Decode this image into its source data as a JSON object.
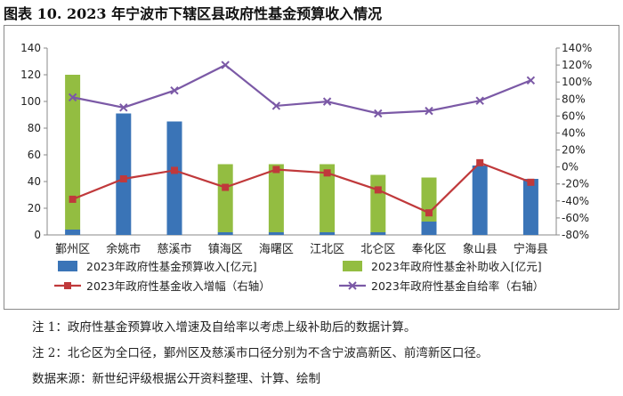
{
  "title": "图表 10. 2023 年宁波市下辖区县政府性基金预算收入情况",
  "chart_data": {
    "type": "bar",
    "categories": [
      "鄞州区",
      "余姚市",
      "慈溪市",
      "镇海区",
      "海曙区",
      "江北区",
      "北仑区",
      "奉化区",
      "象山县",
      "宁海县"
    ],
    "series": [
      {
        "name": "2023年政府性基金预算收入[亿元]",
        "type": "bar",
        "axis": "left",
        "color": "#3a74b7",
        "values": [
          4,
          91,
          85,
          2,
          2,
          2,
          2,
          10,
          52,
          42
        ]
      },
      {
        "name": "2023年政府性基金补助收入[亿元]",
        "type": "bar",
        "axis": "left",
        "color": "#93bd41",
        "values": [
          116,
          0,
          0,
          51,
          51,
          51,
          43,
          33,
          0,
          0
        ]
      },
      {
        "name": "2023年政府性基金收入增幅（右轴）",
        "type": "line",
        "axis": "right",
        "color": "#c0393b",
        "marker": "square",
        "values": [
          -38,
          -14,
          -4,
          -24,
          -3,
          -7,
          -27,
          -54,
          5,
          -18
        ]
      },
      {
        "name": "2023年政府性基金自给率（右轴）",
        "type": "line",
        "axis": "right",
        "color": "#7b59a6",
        "marker": "x",
        "values": [
          82,
          70,
          90,
          120,
          72,
          77,
          63,
          66,
          78,
          102
        ]
      }
    ],
    "yaxis_left": {
      "min": 0,
      "max": 140,
      "step": 20,
      "ticks": [
        "0",
        "20",
        "40",
        "60",
        "80",
        "100",
        "120",
        "140"
      ]
    },
    "yaxis_right": {
      "min": -80,
      "max": 140,
      "step": 20,
      "ticks": [
        "-80%",
        "-60%",
        "-40%",
        "-20%",
        "0%",
        "20%",
        "40%",
        "60%",
        "80%",
        "100%",
        "120%",
        "140%"
      ]
    },
    "legend_position": "bottom",
    "grid": false
  },
  "notes": [
    "注 1：政府性基金预算收入增速及自给率以考虑上级补助后的数据计算。",
    "注 2：北仑区为全口径，鄞州区及慈溪市口径分别为不含宁波高新区、前湾新区口径。",
    "数据来源：新世纪评级根据公开资料整理、计算、绘制"
  ]
}
